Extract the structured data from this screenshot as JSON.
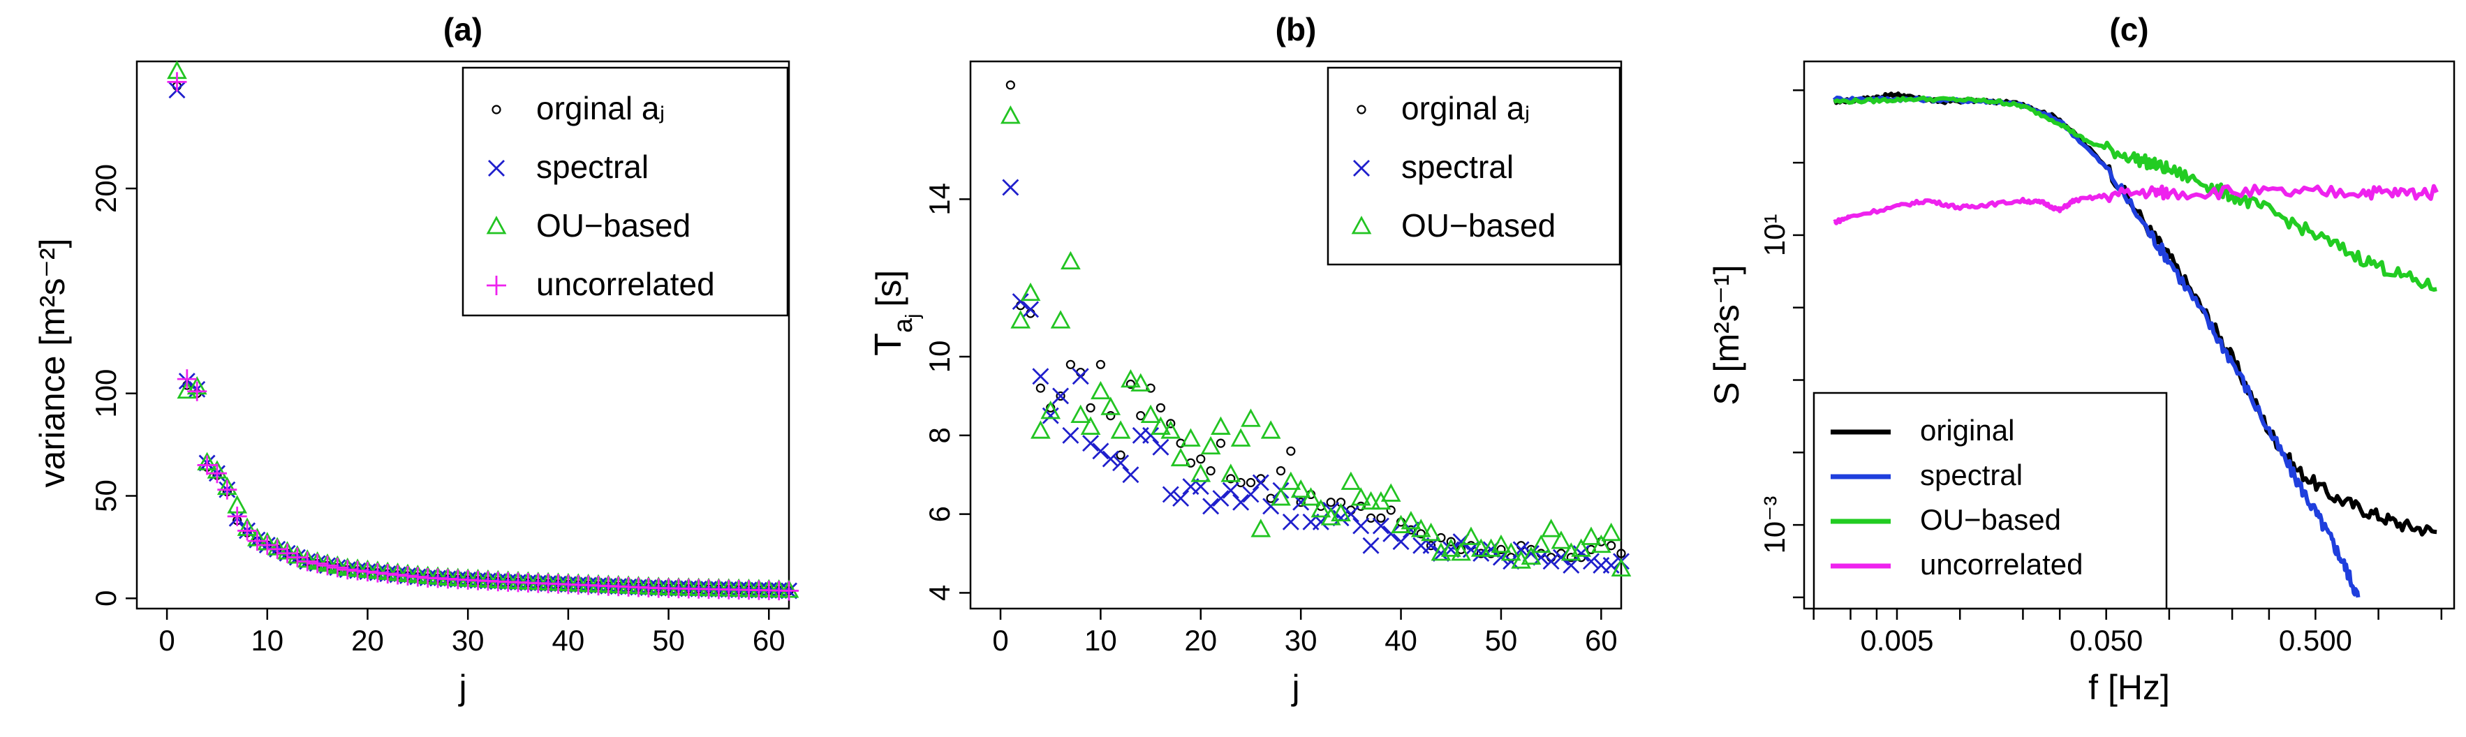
{
  "figure": "three-panel plot",
  "chart_data": [
    {
      "id": "a",
      "type": "scatter",
      "title": "(a)",
      "xlabel": "j",
      "ylabel": "variance [m²s⁻²]",
      "xlim": [
        -3,
        62
      ],
      "ylim": [
        -5,
        262
      ],
      "xticks": [
        0,
        10,
        20,
        30,
        40,
        50,
        60
      ],
      "yticks": [
        0,
        50,
        100,
        200
      ],
      "legend_position": "top-right",
      "series": [
        {
          "name": "orginal aⱼ",
          "marker": "circle",
          "color": "#000000",
          "y": [
            250,
            104,
            100,
            64,
            60,
            52,
            38,
            32,
            28,
            26,
            24,
            22,
            20,
            18,
            17,
            16,
            15,
            14,
            13.5,
            13,
            12.5,
            12,
            11.5,
            11,
            10.5,
            10,
            9.8,
            9.5,
            9.2,
            9,
            8.7,
            8.5,
            8.2,
            8,
            7.8,
            7.6,
            7.4,
            7.2,
            7,
            6.8,
            6.6,
            6.4,
            6.2,
            6,
            5.8,
            5.6,
            5.4,
            5.2,
            5,
            4.9,
            4.8,
            4.7,
            4.6,
            4.5,
            4.4,
            4.3,
            4.2,
            4.1,
            4,
            3.9,
            3.8,
            3.7
          ]
        },
        {
          "name": "spectral",
          "marker": "cross",
          "color": "#1f1fcc",
          "y": [
            248,
            106,
            102,
            66,
            61,
            53,
            39,
            33,
            28.5,
            26,
            24,
            22,
            20,
            18,
            17,
            16,
            15,
            14,
            13.5,
            13,
            12.5,
            12,
            11.5,
            11,
            10.5,
            10,
            9.8,
            9.5,
            9.2,
            9,
            8.7,
            8.5,
            8.2,
            8,
            7.8,
            7.6,
            7.4,
            7.2,
            7,
            6.8,
            6.6,
            6.4,
            6.2,
            6,
            5.8,
            5.6,
            5.4,
            5.2,
            5,
            4.9,
            4.8,
            4.7,
            4.6,
            4.5,
            4.4,
            4.3,
            4.2,
            4.1,
            4,
            3.9,
            3.8,
            3.7
          ]
        },
        {
          "name": "OU−based",
          "marker": "triangle",
          "color": "#22c422",
          "y": [
            257,
            101,
            103,
            66,
            62,
            54,
            45,
            34,
            29,
            27,
            24.5,
            22.5,
            20.5,
            18.5,
            17.5,
            16.5,
            15.5,
            14.5,
            14,
            13.5,
            13,
            12.5,
            12,
            11.5,
            11,
            10.5,
            10.2,
            9.8,
            9.5,
            9.2,
            9,
            8.7,
            8.4,
            8.2,
            8,
            7.8,
            7.6,
            7.4,
            7.2,
            7,
            6.8,
            6.6,
            6.4,
            6.2,
            6,
            5.8,
            5.6,
            5.4,
            5.2,
            5,
            4.9,
            4.8,
            4.7,
            4.6,
            4.5,
            4.4,
            4.3,
            4.2,
            4.1,
            4,
            3.9,
            3.8
          ]
        },
        {
          "name": "uncorrelated",
          "marker": "plus",
          "color": "#ee22ee",
          "y": [
            252,
            107,
            101,
            65,
            61,
            53,
            40,
            33,
            28,
            26,
            24,
            22,
            20,
            18,
            17,
            16,
            15,
            14,
            13.5,
            13,
            12.5,
            12,
            11.5,
            11,
            10.5,
            10,
            9.8,
            9.5,
            9.2,
            9,
            8.7,
            8.5,
            8.2,
            8,
            7.8,
            7.6,
            7.4,
            7.2,
            7,
            6.8,
            6.6,
            6.4,
            6.2,
            6,
            5.8,
            5.6,
            5.4,
            5.2,
            5,
            4.9,
            4.8,
            4.7,
            4.6,
            4.5,
            4.4,
            4.3,
            4.2,
            4.1,
            4,
            3.9,
            3.8,
            3.7
          ]
        }
      ]
    },
    {
      "id": "b",
      "type": "scatter",
      "title": "(b)",
      "xlabel": "j",
      "ylabel_main": "T",
      "ylabel_sub": "a",
      "ylabel_subsub": "j",
      "ylabel_unit": "[s]",
      "xlim": [
        -3,
        62
      ],
      "ylim": [
        3.6,
        17.5
      ],
      "xticks": [
        0,
        10,
        20,
        30,
        40,
        50,
        60
      ],
      "yticks": [
        4,
        6,
        8,
        10,
        14
      ],
      "legend_position": "top-right",
      "series": [
        {
          "name": "orginal aⱼ",
          "marker": "circle",
          "color": "#000000",
          "y": [
            16.9,
            11.3,
            11.1,
            9.2,
            8.7,
            9,
            9.8,
            9.6,
            8.7,
            9.8,
            8.5,
            7.5,
            9.3,
            8.5,
            9.2,
            8.7,
            8.3,
            7.8,
            7.3,
            7.4,
            7.1,
            7.8,
            6.9,
            6.8,
            6.8,
            6.9,
            6.4,
            7.1,
            7.6,
            6.3,
            6.5,
            6.2,
            6.3,
            6.3,
            6.1,
            6.2,
            5.9,
            5.9,
            6.1,
            5.8,
            5.6,
            5.5,
            5.2,
            5.4,
            5.3,
            5.1,
            5.2,
            5,
            5,
            5.1,
            4.9,
            5.2,
            5.1,
            5,
            4.9,
            5,
            4.9,
            4.9,
            5.1,
            5.3,
            5.2,
            5
          ]
        },
        {
          "name": "spectral",
          "marker": "cross",
          "color": "#1f1fcc",
          "y": [
            14.3,
            11.4,
            11.2,
            9.5,
            8.5,
            9,
            8,
            9.5,
            7.8,
            7.6,
            7.4,
            7.3,
            7,
            8,
            8,
            7.7,
            6.5,
            6.4,
            6.7,
            6.7,
            6.2,
            6.4,
            6.6,
            6.3,
            6.5,
            6.8,
            6.2,
            6.6,
            5.8,
            6.3,
            5.8,
            5.8,
            6.1,
            5.9,
            6,
            5.7,
            5.2,
            5.7,
            5.5,
            5.3,
            5.6,
            5.2,
            5.2,
            5,
            5.1,
            5.3,
            5.1,
            5,
            5.1,
            4.9,
            4.8,
            5.1,
            5,
            4.9,
            4.8,
            4.9,
            4.7,
            5,
            4.8,
            4.7,
            4.7,
            4.8
          ]
        },
        {
          "name": "OU−based",
          "marker": "triangle",
          "color": "#22c422",
          "y": [
            16.1,
            10.9,
            11.6,
            8.1,
            8.6,
            10.9,
            12.4,
            8.5,
            8.2,
            9.1,
            8.7,
            8.1,
            9.4,
            9.3,
            8.5,
            8.2,
            8.1,
            7.4,
            7.9,
            7,
            7.7,
            8.2,
            7,
            7.9,
            8.4,
            5.6,
            8.1,
            6.4,
            6.8,
            6.6,
            6.4,
            6.1,
            5.9,
            6,
            6.8,
            6.4,
            6.3,
            6.3,
            6.5,
            5.7,
            5.8,
            5.6,
            5.5,
            5,
            5.1,
            5,
            5.4,
            5.1,
            5.1,
            5.2,
            5,
            4.8,
            4.9,
            5.2,
            5.6,
            5.3,
            5,
            5.1,
            5.4,
            5.2,
            5.5,
            4.6
          ]
        }
      ]
    },
    {
      "id": "c",
      "type": "line",
      "title": "(c)",
      "xlabel": "f [Hz]",
      "ylabel": "S [m²s⁻¹]",
      "xscale": "log",
      "yscale": "log",
      "xlim": [
        0.0018,
        2.3
      ],
      "ylim": [
        7e-05,
        2500
      ],
      "xticks": [
        0.005,
        0.05,
        0.5
      ],
      "xtick_labels": [
        "0.005",
        "0.050",
        "0.500"
      ],
      "yticks": [
        10,
        0.001
      ],
      "ytick_labels": [
        "10¹",
        "10⁻³"
      ],
      "legend_position": "bottom-left",
      "series": [
        {
          "name": "original",
          "color": "#000000",
          "points": [
            [
              0.0025,
              700
            ],
            [
              0.003,
              720
            ],
            [
              0.004,
              800
            ],
            [
              0.005,
              880
            ],
            [
              0.006,
              780
            ],
            [
              0.008,
              700
            ],
            [
              0.012,
              720
            ],
            [
              0.02,
              650
            ],
            [
              0.03,
              400
            ],
            [
              0.05,
              90
            ],
            [
              0.08,
              12
            ],
            [
              0.1,
              5
            ],
            [
              0.15,
              0.8
            ],
            [
              0.2,
              0.2
            ],
            [
              0.3,
              0.02
            ],
            [
              0.4,
              0.006
            ],
            [
              0.6,
              0.0025
            ],
            [
              0.9,
              0.0015
            ],
            [
              1.3,
              0.001
            ],
            [
              1.9,
              0.0008
            ]
          ]
        },
        {
          "name": "spectral",
          "color": "#1f3fdd",
          "points": [
            [
              0.0025,
              760
            ],
            [
              0.004,
              760
            ],
            [
              0.006,
              750
            ],
            [
              0.01,
              720
            ],
            [
              0.015,
              700
            ],
            [
              0.02,
              620
            ],
            [
              0.03,
              380
            ],
            [
              0.05,
              85
            ],
            [
              0.08,
              11
            ],
            [
              0.1,
              4.5
            ],
            [
              0.15,
              0.7
            ],
            [
              0.2,
              0.18
            ],
            [
              0.3,
              0.02
            ],
            [
              0.4,
              0.0045
            ],
            [
              0.5,
              0.0015
            ],
            [
              0.6,
              0.0006
            ],
            [
              0.7,
              0.00025
            ],
            [
              0.8,
              0.0001
            ]
          ]
        },
        {
          "name": "OU−based",
          "color": "#22cc22",
          "points": [
            [
              0.0025,
              700
            ],
            [
              0.004,
              720
            ],
            [
              0.006,
              760
            ],
            [
              0.01,
              740
            ],
            [
              0.015,
              700
            ],
            [
              0.02,
              600
            ],
            [
              0.03,
              350
            ],
            [
              0.04,
              200
            ],
            [
              0.06,
              130
            ],
            [
              0.08,
              100
            ],
            [
              0.1,
              80
            ],
            [
              0.15,
              50
            ],
            [
              0.2,
              35
            ],
            [
              0.3,
              22
            ],
            [
              0.5,
              10
            ],
            [
              0.8,
              5
            ],
            [
              1.2,
              3
            ],
            [
              1.9,
              1.8
            ]
          ]
        },
        {
          "name": "uncorrelated",
          "color": "#ee22ee",
          "points": [
            [
              0.0025,
              15
            ],
            [
              0.003,
              18
            ],
            [
              0.005,
              25
            ],
            [
              0.007,
              30
            ],
            [
              0.01,
              24
            ],
            [
              0.013,
              26
            ],
            [
              0.02,
              30
            ],
            [
              0.025,
              28
            ],
            [
              0.03,
              22
            ],
            [
              0.035,
              30
            ],
            [
              0.05,
              35
            ],
            [
              0.08,
              40
            ],
            [
              0.1,
              38
            ],
            [
              0.2,
              40
            ],
            [
              0.4,
              38
            ],
            [
              0.8,
              40
            ],
            [
              1.2,
              38
            ],
            [
              1.9,
              39
            ]
          ]
        }
      ]
    }
  ]
}
